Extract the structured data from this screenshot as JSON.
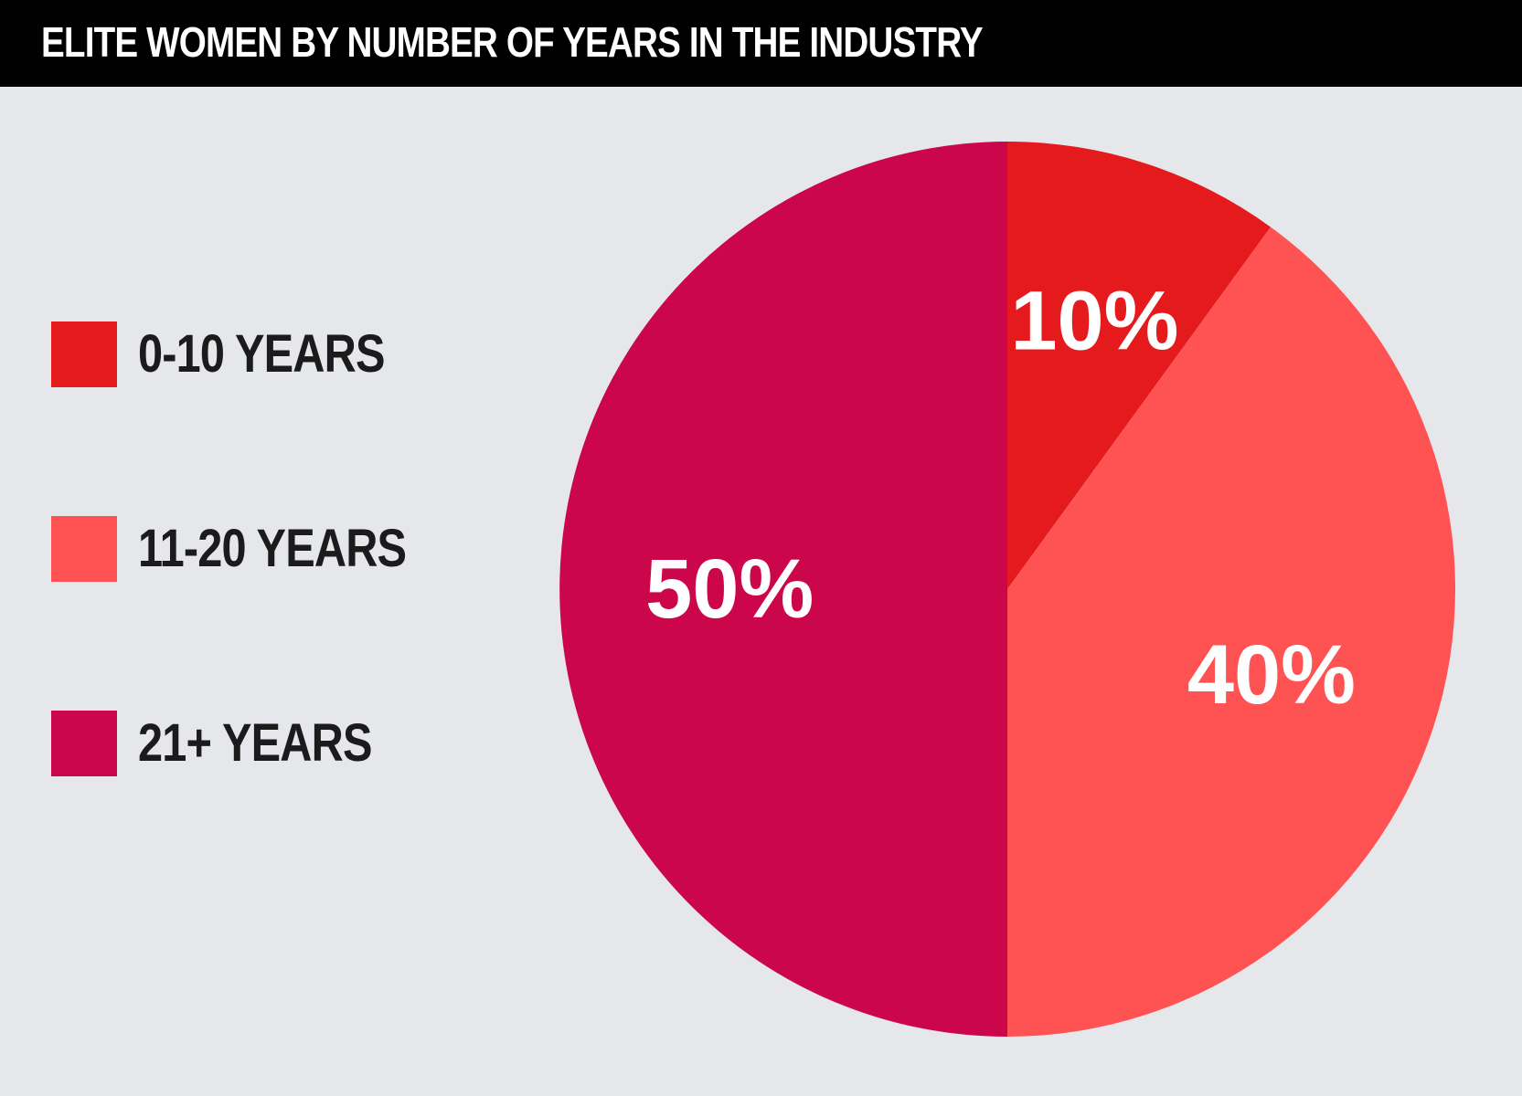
{
  "chart_data": {
    "type": "pie",
    "title": "ELITE WOMEN BY NUMBER OF YEARS IN THE INDUSTRY",
    "legend_position": "left",
    "start_angle_deg": 0,
    "direction": "clockwise",
    "slices": [
      {
        "name": "0-10 YEARS",
        "value": 10,
        "label": "10%",
        "color": "#e41a1c"
      },
      {
        "name": "11-20 YEARS",
        "value": 40,
        "label": "40%",
        "color": "#ff5252"
      },
      {
        "name": "21+ YEARS",
        "value": 50,
        "label": "50%",
        "color": "#cc064b"
      }
    ]
  }
}
